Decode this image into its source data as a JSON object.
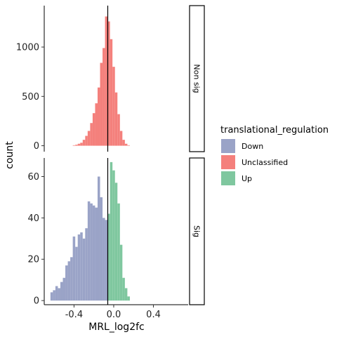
{
  "chart_data": {
    "type": "bar",
    "xlabel": "MRL_log2fc",
    "ylabel": "count",
    "xlim": [
      -0.7,
      0.75
    ],
    "x_ticks": [
      -0.4,
      0.0,
      0.4
    ],
    "x_tick_labels": [
      "-0.4",
      "0.0",
      "0.4"
    ],
    "vline": -0.06,
    "bin_width": 0.025,
    "grid": false,
    "legend": {
      "title": "translational_regulation",
      "position": "right",
      "entries": [
        {
          "label": "Down",
          "color": "#9aa3c7"
        },
        {
          "label": "Unclassified",
          "color": "#f4807c"
        },
        {
          "label": "Up",
          "color": "#7fc79f"
        }
      ]
    },
    "panels": [
      {
        "strip": "Non sig",
        "ylim": [
          -60,
          1420
        ],
        "y_ticks": [
          0,
          500,
          1000
        ],
        "series": [
          {
            "name": "Unclassified",
            "color": "#f4807c",
            "bins": [
              {
                "x": -0.4,
                "y": 5
              },
              {
                "x": -0.375,
                "y": 10
              },
              {
                "x": -0.35,
                "y": 20
              },
              {
                "x": -0.325,
                "y": 30
              },
              {
                "x": -0.3,
                "y": 60
              },
              {
                "x": -0.275,
                "y": 100
              },
              {
                "x": -0.25,
                "y": 150
              },
              {
                "x": -0.225,
                "y": 230
              },
              {
                "x": -0.2,
                "y": 330
              },
              {
                "x": -0.175,
                "y": 430
              },
              {
                "x": -0.15,
                "y": 590
              },
              {
                "x": -0.125,
                "y": 840
              },
              {
                "x": -0.1,
                "y": 990
              },
              {
                "x": -0.075,
                "y": 1310
              },
              {
                "x": -0.05,
                "y": 1260
              },
              {
                "x": -0.025,
                "y": 1080
              },
              {
                "x": 0.0,
                "y": 800
              },
              {
                "x": 0.025,
                "y": 540
              },
              {
                "x": 0.05,
                "y": 320
              },
              {
                "x": 0.075,
                "y": 150
              },
              {
                "x": 0.1,
                "y": 60
              },
              {
                "x": 0.125,
                "y": 20
              },
              {
                "x": 0.15,
                "y": 5
              }
            ]
          }
        ]
      },
      {
        "strip": "Sig",
        "ylim": [
          -2,
          69
        ],
        "y_ticks": [
          0,
          20,
          40,
          60
        ],
        "series": [
          {
            "name": "Down",
            "color": "#9aa3c7",
            "bins": [
              {
                "x": -0.625,
                "y": 4
              },
              {
                "x": -0.6,
                "y": 5
              },
              {
                "x": -0.575,
                "y": 7
              },
              {
                "x": -0.55,
                "y": 6
              },
              {
                "x": -0.525,
                "y": 9
              },
              {
                "x": -0.5,
                "y": 11
              },
              {
                "x": -0.475,
                "y": 17
              },
              {
                "x": -0.45,
                "y": 19
              },
              {
                "x": -0.425,
                "y": 21
              },
              {
                "x": -0.4,
                "y": 31
              },
              {
                "x": -0.375,
                "y": 26
              },
              {
                "x": -0.35,
                "y": 32
              },
              {
                "x": -0.325,
                "y": 33
              },
              {
                "x": -0.3,
                "y": 30
              },
              {
                "x": -0.275,
                "y": 35
              },
              {
                "x": -0.25,
                "y": 48
              },
              {
                "x": -0.225,
                "y": 47
              },
              {
                "x": -0.2,
                "y": 46
              },
              {
                "x": -0.175,
                "y": 45
              },
              {
                "x": -0.15,
                "y": 60
              },
              {
                "x": -0.125,
                "y": 50
              },
              {
                "x": -0.1,
                "y": 40
              },
              {
                "x": -0.075,
                "y": 39
              }
            ]
          },
          {
            "name": "Up",
            "color": "#7fc79f",
            "bins": [
              {
                "x": -0.05,
                "y": 42
              },
              {
                "x": -0.025,
                "y": 67
              },
              {
                "x": 0.0,
                "y": 63
              },
              {
                "x": 0.025,
                "y": 57
              },
              {
                "x": 0.05,
                "y": 47
              },
              {
                "x": 0.075,
                "y": 27
              },
              {
                "x": 0.1,
                "y": 11
              },
              {
                "x": 0.125,
                "y": 6
              },
              {
                "x": 0.15,
                "y": 2
              }
            ]
          }
        ]
      }
    ]
  }
}
